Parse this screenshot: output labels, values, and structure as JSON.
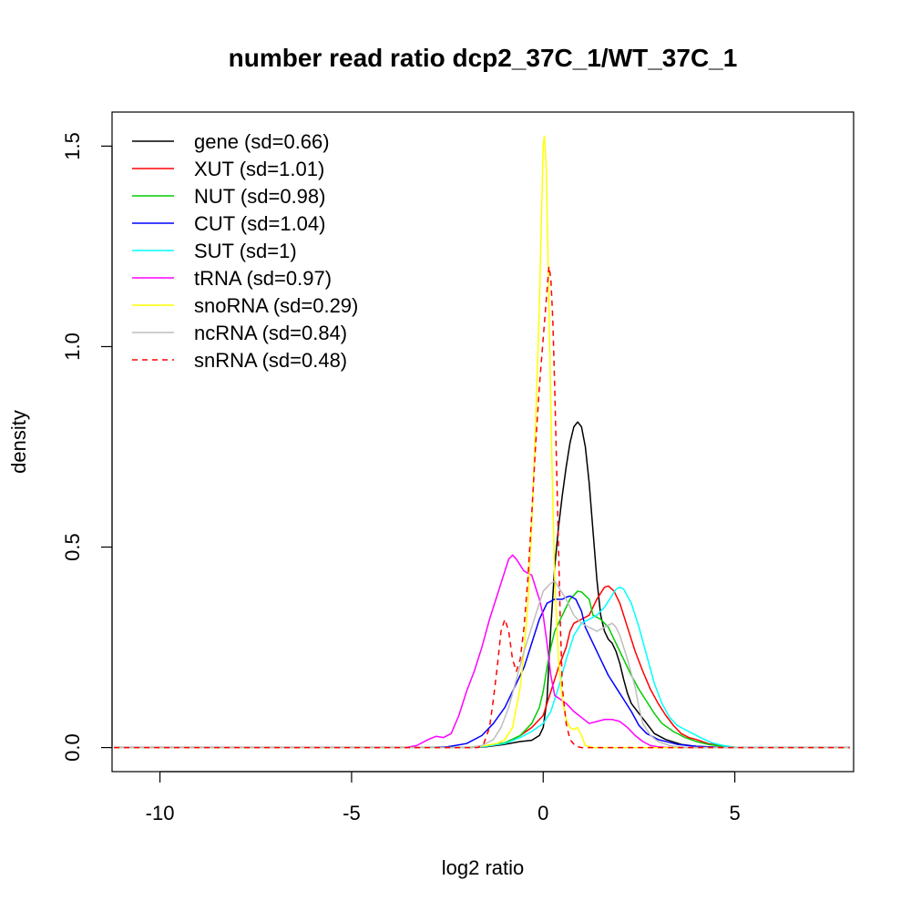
{
  "chart_data": {
    "type": "line",
    "title": "number read ratio dcp2_37C_1/WT_37C_1",
    "xlabel": "log2 ratio",
    "ylabel": "density",
    "xlim": [
      -11.25,
      8.1
    ],
    "ylim": [
      -0.06,
      1.585
    ],
    "x_ticks": [
      -10,
      -5,
      0,
      5
    ],
    "x_tick_labels": [
      "-10",
      "-5",
      "0",
      "5"
    ],
    "y_ticks": [
      0.0,
      0.5,
      1.0,
      1.5
    ],
    "y_tick_labels": [
      "0.0",
      "0.5",
      "1.0",
      "1.5"
    ],
    "grid": false,
    "legend_position": "top-left",
    "series": [
      {
        "name": "gene (sd=0.66)",
        "color": "#000000",
        "dash": "solid",
        "points": [
          [
            -11.2,
            0
          ],
          [
            -2,
            0
          ],
          [
            -1.5,
            0.002
          ],
          [
            -1.0,
            0.008
          ],
          [
            -0.6,
            0.015
          ],
          [
            -0.3,
            0.018
          ],
          [
            -0.1,
            0.03
          ],
          [
            0.0,
            0.05
          ],
          [
            0.1,
            0.12
          ],
          [
            0.2,
            0.3
          ],
          [
            0.3,
            0.45
          ],
          [
            0.4,
            0.55
          ],
          [
            0.5,
            0.63
          ],
          [
            0.6,
            0.7
          ],
          [
            0.7,
            0.76
          ],
          [
            0.8,
            0.8
          ],
          [
            0.9,
            0.812
          ],
          [
            1.0,
            0.8
          ],
          [
            1.1,
            0.75
          ],
          [
            1.2,
            0.66
          ],
          [
            1.3,
            0.54
          ],
          [
            1.4,
            0.42
          ],
          [
            1.5,
            0.33
          ],
          [
            1.6,
            0.29
          ],
          [
            1.7,
            0.27
          ],
          [
            1.8,
            0.26
          ],
          [
            1.9,
            0.24
          ],
          [
            2.0,
            0.21
          ],
          [
            2.1,
            0.17
          ],
          [
            2.2,
            0.135
          ],
          [
            2.3,
            0.11
          ],
          [
            2.5,
            0.085
          ],
          [
            2.7,
            0.06
          ],
          [
            2.9,
            0.035
          ],
          [
            3.2,
            0.02
          ],
          [
            3.6,
            0.008
          ],
          [
            4.0,
            0.003
          ],
          [
            4.5,
            0.001
          ],
          [
            5,
            0
          ],
          [
            8,
            0
          ]
        ]
      },
      {
        "name": "XUT (sd=1.01)",
        "color": "#ff0000",
        "dash": "solid",
        "points": [
          [
            -11.2,
            0
          ],
          [
            -2,
            0
          ],
          [
            -1.5,
            0.003
          ],
          [
            -1.0,
            0.01
          ],
          [
            -0.6,
            0.03
          ],
          [
            -0.3,
            0.05
          ],
          [
            0.0,
            0.08
          ],
          [
            0.2,
            0.14
          ],
          [
            0.4,
            0.2
          ],
          [
            0.6,
            0.25
          ],
          [
            0.7,
            0.29
          ],
          [
            0.8,
            0.31
          ],
          [
            1.0,
            0.32
          ],
          [
            1.2,
            0.33
          ],
          [
            1.4,
            0.37
          ],
          [
            1.6,
            0.4
          ],
          [
            1.7,
            0.403
          ],
          [
            1.85,
            0.39
          ],
          [
            2.0,
            0.36
          ],
          [
            2.2,
            0.3
          ],
          [
            2.4,
            0.24
          ],
          [
            2.6,
            0.19
          ],
          [
            2.8,
            0.145
          ],
          [
            3.0,
            0.11
          ],
          [
            3.2,
            0.08
          ],
          [
            3.4,
            0.055
          ],
          [
            3.6,
            0.035
          ],
          [
            3.8,
            0.025
          ],
          [
            4.0,
            0.02
          ],
          [
            4.3,
            0.01
          ],
          [
            4.6,
            0.005
          ],
          [
            5.0,
            0.001
          ],
          [
            8,
            0
          ]
        ]
      },
      {
        "name": "NUT (sd=0.98)",
        "color": "#00cd00",
        "dash": "solid",
        "points": [
          [
            -11.2,
            0
          ],
          [
            -2,
            0
          ],
          [
            -1.5,
            0.004
          ],
          [
            -1.0,
            0.012
          ],
          [
            -0.6,
            0.03
          ],
          [
            -0.3,
            0.06
          ],
          [
            -0.1,
            0.1
          ],
          [
            0.0,
            0.14
          ],
          [
            0.1,
            0.2
          ],
          [
            0.2,
            0.25
          ],
          [
            0.3,
            0.29
          ],
          [
            0.5,
            0.33
          ],
          [
            0.7,
            0.37
          ],
          [
            0.9,
            0.39
          ],
          [
            1.0,
            0.388
          ],
          [
            1.2,
            0.37
          ],
          [
            1.3,
            0.33
          ],
          [
            1.5,
            0.32
          ],
          [
            1.7,
            0.3
          ],
          [
            1.9,
            0.26
          ],
          [
            2.1,
            0.22
          ],
          [
            2.3,
            0.18
          ],
          [
            2.5,
            0.145
          ],
          [
            2.7,
            0.115
          ],
          [
            2.9,
            0.085
          ],
          [
            3.1,
            0.06
          ],
          [
            3.4,
            0.04
          ],
          [
            3.7,
            0.025
          ],
          [
            4.0,
            0.015
          ],
          [
            4.3,
            0.008
          ],
          [
            4.7,
            0.003
          ],
          [
            5.0,
            0.001
          ],
          [
            8,
            0
          ]
        ]
      },
      {
        "name": "CUT (sd=1.04)",
        "color": "#0000ff",
        "dash": "solid",
        "points": [
          [
            -11.2,
            0
          ],
          [
            -3,
            0
          ],
          [
            -2.5,
            0.002
          ],
          [
            -2.0,
            0.01
          ],
          [
            -1.6,
            0.03
          ],
          [
            -1.3,
            0.06
          ],
          [
            -1.0,
            0.1
          ],
          [
            -0.7,
            0.16
          ],
          [
            -0.5,
            0.2
          ],
          [
            -0.3,
            0.26
          ],
          [
            -0.1,
            0.32
          ],
          [
            0.1,
            0.36
          ],
          [
            0.3,
            0.37
          ],
          [
            0.5,
            0.37
          ],
          [
            0.6,
            0.375
          ],
          [
            0.7,
            0.378
          ],
          [
            0.85,
            0.37
          ],
          [
            1.0,
            0.34
          ],
          [
            1.1,
            0.3
          ],
          [
            1.3,
            0.26
          ],
          [
            1.5,
            0.22
          ],
          [
            1.7,
            0.18
          ],
          [
            1.9,
            0.15
          ],
          [
            2.1,
            0.12
          ],
          [
            2.3,
            0.09
          ],
          [
            2.5,
            0.055
          ],
          [
            2.7,
            0.035
          ],
          [
            3.0,
            0.02
          ],
          [
            3.5,
            0.008
          ],
          [
            4.0,
            0.003
          ],
          [
            4.5,
            0.001
          ],
          [
            5,
            0
          ],
          [
            8,
            0
          ]
        ]
      },
      {
        "name": "SUT (sd=1)",
        "color": "#00ffff",
        "dash": "solid",
        "points": [
          [
            -11.2,
            0
          ],
          [
            -2,
            0
          ],
          [
            -1.5,
            0.003
          ],
          [
            -1.0,
            0.01
          ],
          [
            -0.6,
            0.025
          ],
          [
            -0.3,
            0.04
          ],
          [
            0.0,
            0.06
          ],
          [
            0.2,
            0.09
          ],
          [
            0.4,
            0.15
          ],
          [
            0.6,
            0.22
          ],
          [
            0.8,
            0.28
          ],
          [
            1.0,
            0.31
          ],
          [
            1.2,
            0.32
          ],
          [
            1.4,
            0.33
          ],
          [
            1.6,
            0.35
          ],
          [
            1.8,
            0.38
          ],
          [
            1.9,
            0.395
          ],
          [
            2.0,
            0.4
          ],
          [
            2.1,
            0.395
          ],
          [
            2.3,
            0.36
          ],
          [
            2.5,
            0.3
          ],
          [
            2.7,
            0.23
          ],
          [
            2.9,
            0.16
          ],
          [
            3.1,
            0.11
          ],
          [
            3.3,
            0.075
          ],
          [
            3.5,
            0.055
          ],
          [
            3.8,
            0.04
          ],
          [
            4.1,
            0.025
          ],
          [
            4.4,
            0.012
          ],
          [
            4.7,
            0.005
          ],
          [
            5.0,
            0.001
          ],
          [
            8,
            0
          ]
        ]
      },
      {
        "name": "tRNA (sd=0.97)",
        "color": "#ff00ff",
        "dash": "solid",
        "points": [
          [
            -11.2,
            0
          ],
          [
            -3.6,
            0
          ],
          [
            -3.3,
            0.005
          ],
          [
            -3.0,
            0.02
          ],
          [
            -2.8,
            0.028
          ],
          [
            -2.6,
            0.025
          ],
          [
            -2.4,
            0.035
          ],
          [
            -2.2,
            0.08
          ],
          [
            -2.0,
            0.14
          ],
          [
            -1.8,
            0.19
          ],
          [
            -1.6,
            0.25
          ],
          [
            -1.4,
            0.32
          ],
          [
            -1.2,
            0.38
          ],
          [
            -1.0,
            0.44
          ],
          [
            -0.9,
            0.47
          ],
          [
            -0.8,
            0.48
          ],
          [
            -0.7,
            0.47
          ],
          [
            -0.5,
            0.44
          ],
          [
            -0.3,
            0.43
          ],
          [
            -0.1,
            0.37
          ],
          [
            0.0,
            0.33
          ],
          [
            0.1,
            0.26
          ],
          [
            0.2,
            0.18
          ],
          [
            0.3,
            0.13
          ],
          [
            0.45,
            0.12
          ],
          [
            0.6,
            0.11
          ],
          [
            0.8,
            0.09
          ],
          [
            1.0,
            0.075
          ],
          [
            1.2,
            0.06
          ],
          [
            1.4,
            0.065
          ],
          [
            1.6,
            0.07
          ],
          [
            1.8,
            0.07
          ],
          [
            2.0,
            0.065
          ],
          [
            2.2,
            0.05
          ],
          [
            2.4,
            0.03
          ],
          [
            2.6,
            0.015
          ],
          [
            2.8,
            0.005
          ],
          [
            3.0,
            0.002
          ],
          [
            3.3,
            0
          ],
          [
            8,
            0
          ]
        ]
      },
      {
        "name": "snoRNA (sd=0.29)",
        "color": "#ffff00",
        "dash": "solid",
        "points": [
          [
            -11.2,
            0
          ],
          [
            -2,
            0
          ],
          [
            -1.5,
            0.005
          ],
          [
            -1.2,
            0.01
          ],
          [
            -1.0,
            0.02
          ],
          [
            -0.8,
            0.05
          ],
          [
            -0.6,
            0.15
          ],
          [
            -0.5,
            0.24
          ],
          [
            -0.4,
            0.36
          ],
          [
            -0.3,
            0.55
          ],
          [
            -0.2,
            0.8
          ],
          [
            -0.1,
            1.1
          ],
          [
            -0.05,
            1.3
          ],
          [
            0.0,
            1.5
          ],
          [
            0.03,
            1.525
          ],
          [
            0.08,
            1.45
          ],
          [
            0.15,
            1.1
          ],
          [
            0.22,
            0.75
          ],
          [
            0.3,
            0.42
          ],
          [
            0.4,
            0.22
          ],
          [
            0.5,
            0.12
          ],
          [
            0.6,
            0.07
          ],
          [
            0.7,
            0.05
          ],
          [
            0.8,
            0.045
          ],
          [
            0.9,
            0.05
          ],
          [
            1.0,
            0.03
          ],
          [
            1.1,
            0.005
          ],
          [
            1.3,
            0
          ],
          [
            8,
            0
          ]
        ]
      },
      {
        "name": "ncRNA (sd=0.84)",
        "color": "#bebebe",
        "dash": "solid",
        "points": [
          [
            -11.2,
            0
          ],
          [
            -2,
            0
          ],
          [
            -1.6,
            0.005
          ],
          [
            -1.3,
            0.02
          ],
          [
            -1.1,
            0.05
          ],
          [
            -0.9,
            0.1
          ],
          [
            -0.7,
            0.17
          ],
          [
            -0.5,
            0.24
          ],
          [
            -0.3,
            0.3
          ],
          [
            -0.1,
            0.36
          ],
          [
            0.0,
            0.39
          ],
          [
            0.2,
            0.41
          ],
          [
            0.3,
            0.415
          ],
          [
            0.4,
            0.4
          ],
          [
            0.6,
            0.37
          ],
          [
            0.8,
            0.33
          ],
          [
            1.0,
            0.31
          ],
          [
            1.2,
            0.3
          ],
          [
            1.4,
            0.29
          ],
          [
            1.6,
            0.3
          ],
          [
            1.8,
            0.31
          ],
          [
            1.9,
            0.3
          ],
          [
            2.0,
            0.28
          ],
          [
            2.2,
            0.22
          ],
          [
            2.4,
            0.15
          ],
          [
            2.5,
            0.1
          ],
          [
            2.6,
            0.06
          ],
          [
            2.8,
            0.03
          ],
          [
            3.0,
            0.015
          ],
          [
            3.3,
            0.005
          ],
          [
            3.6,
            0.001
          ],
          [
            4,
            0
          ],
          [
            8,
            0
          ]
        ]
      },
      {
        "name": "snRNA (sd=0.48)",
        "color": "#ff0000",
        "dash": "dashed",
        "points": [
          [
            -11.2,
            0
          ],
          [
            -1.7,
            0
          ],
          [
            -1.55,
            0.01
          ],
          [
            -1.4,
            0.05
          ],
          [
            -1.3,
            0.12
          ],
          [
            -1.2,
            0.2
          ],
          [
            -1.1,
            0.29
          ],
          [
            -1.0,
            0.32
          ],
          [
            -0.9,
            0.29
          ],
          [
            -0.8,
            0.22
          ],
          [
            -0.7,
            0.19
          ],
          [
            -0.6,
            0.22
          ],
          [
            -0.5,
            0.3
          ],
          [
            -0.4,
            0.42
          ],
          [
            -0.3,
            0.58
          ],
          [
            -0.2,
            0.75
          ],
          [
            -0.1,
            0.9
          ],
          [
            0.0,
            1.02
          ],
          [
            0.1,
            1.14
          ],
          [
            0.15,
            1.2
          ],
          [
            0.2,
            1.17
          ],
          [
            0.25,
            1.07
          ],
          [
            0.3,
            0.9
          ],
          [
            0.35,
            0.7
          ],
          [
            0.4,
            0.5
          ],
          [
            0.45,
            0.3
          ],
          [
            0.5,
            0.15
          ],
          [
            0.6,
            0.06
          ],
          [
            0.7,
            0.02
          ],
          [
            0.85,
            0.003
          ],
          [
            1.0,
            0
          ],
          [
            8,
            0
          ]
        ]
      }
    ]
  }
}
